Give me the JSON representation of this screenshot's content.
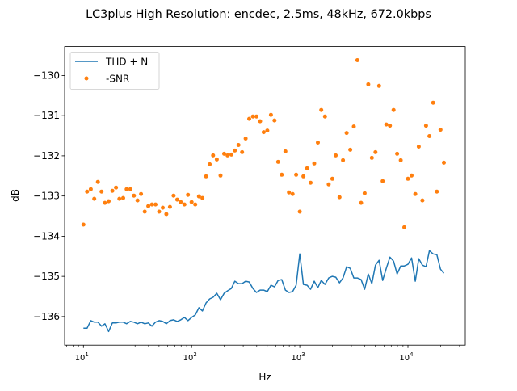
{
  "chart_data": {
    "type": "line+scatter",
    "title": "LC3plus High Resolution: encdec, 2.5ms, 48kHz, 672.0kbps",
    "xlabel": "Hz",
    "ylabel": "dB",
    "xscale": "log",
    "xlim": [
      6.7,
      33900
    ],
    "ylim": [
      -136.71,
      -129.28
    ],
    "xticks": [
      {
        "base": "10",
        "exp": "1",
        "value": 10
      },
      {
        "base": "10",
        "exp": "2",
        "value": 100
      },
      {
        "base": "10",
        "exp": "3",
        "value": 1000
      },
      {
        "base": "10",
        "exp": "4",
        "value": 10000
      }
    ],
    "yticks": [
      {
        "label": "−130",
        "value": -130
      },
      {
        "label": "−131",
        "value": -131
      },
      {
        "label": "−132",
        "value": -132
      },
      {
        "label": "−133",
        "value": -133
      },
      {
        "label": "−134",
        "value": -134
      },
      {
        "label": "−135",
        "value": -135
      },
      {
        "label": "−136",
        "value": -136
      }
    ],
    "grid": false,
    "legend_position": "top-left",
    "x": [
      10,
      10.8,
      11.7,
      12.6,
      13.6,
      14.7,
      15.8,
      17.1,
      18.5,
      20,
      21.5,
      23.3,
      25.1,
      27.1,
      29.3,
      31.6,
      34.1,
      36.9,
      39.8,
      43,
      46.4,
      50.1,
      54.1,
      58.4,
      63.1,
      68.1,
      73.6,
      79.4,
      85.8,
      92.6,
      100,
      108,
      117,
      126,
      136,
      147,
      158,
      171,
      185,
      200,
      215,
      233,
      251,
      271,
      293,
      316,
      341,
      369,
      398,
      430,
      464,
      501,
      541,
      584,
      631,
      681,
      736,
      794,
      858,
      926,
      1000,
      1080,
      1170,
      1260,
      1360,
      1470,
      1580,
      1710,
      1850,
      2000,
      2150,
      2330,
      2510,
      2710,
      2930,
      3160,
      3410,
      3690,
      3980,
      4300,
      4640,
      5010,
      5410,
      5840,
      6310,
      6810,
      7360,
      7940,
      8580,
      9260,
      10000,
      10800,
      11700,
      12600,
      13600,
      14700,
      15800,
      17100,
      18500,
      20000,
      21500
    ],
    "series": [
      {
        "name": "THD + N",
        "kind": "line",
        "color": "#1f77b4",
        "values": [
          -136.29,
          -136.29,
          -136.1,
          -136.14,
          -136.14,
          -136.24,
          -136.18,
          -136.37,
          -136.16,
          -136.16,
          -136.14,
          -136.14,
          -136.18,
          -136.12,
          -136.14,
          -136.18,
          -136.14,
          -136.18,
          -136.16,
          -136.24,
          -136.14,
          -136.1,
          -136.12,
          -136.18,
          -136.1,
          -136.08,
          -136.12,
          -136.08,
          -136.02,
          -136.1,
          -136.02,
          -135.96,
          -135.78,
          -135.86,
          -135.66,
          -135.56,
          -135.52,
          -135.42,
          -135.58,
          -135.42,
          -135.36,
          -135.3,
          -135.12,
          -135.18,
          -135.18,
          -135.12,
          -135.14,
          -135.3,
          -135.4,
          -135.34,
          -135.34,
          -135.38,
          -135.22,
          -135.26,
          -135.1,
          -135.08,
          -135.34,
          -135.4,
          -135.38,
          -135.22,
          -134.44,
          -135.2,
          -135.22,
          -135.32,
          -135.12,
          -135.28,
          -135.1,
          -135.2,
          -135.04,
          -135.0,
          -135.02,
          -135.16,
          -135.04,
          -134.76,
          -134.8,
          -135.04,
          -135.04,
          -135.08,
          -135.32,
          -134.94,
          -135.18,
          -134.72,
          -134.6,
          -135.1,
          -134.8,
          -134.52,
          -134.62,
          -134.94,
          -134.74,
          -134.74,
          -134.7,
          -134.54,
          -135.12,
          -134.56,
          -134.72,
          -134.76,
          -134.36,
          -134.44,
          -134.46,
          -134.82,
          -134.92
        ]
      },
      {
        "name": "-SNR",
        "kind": "scatter",
        "color": "#ff7f0e",
        "values": [
          -133.71,
          -132.89,
          -132.83,
          -133.07,
          -132.65,
          -132.89,
          -133.17,
          -133.13,
          -132.87,
          -132.79,
          -133.07,
          -133.05,
          -132.83,
          -132.83,
          -132.99,
          -133.11,
          -132.95,
          -133.39,
          -133.25,
          -133.21,
          -133.21,
          -133.39,
          -133.29,
          -133.45,
          -133.27,
          -132.99,
          -133.09,
          -133.15,
          -133.21,
          -132.97,
          -133.15,
          -133.21,
          -133.01,
          -133.05,
          -132.51,
          -132.21,
          -131.99,
          -132.09,
          -132.49,
          -131.95,
          -131.99,
          -131.97,
          -131.87,
          -131.73,
          -131.91,
          -131.57,
          -131.08,
          -131.02,
          -131.02,
          -131.14,
          -131.41,
          -131.37,
          -130.98,
          -131.12,
          -132.15,
          -132.47,
          -131.89,
          -132.91,
          -132.95,
          -132.47,
          -133.39,
          -132.51,
          -132.31,
          -132.67,
          -132.19,
          -131.67,
          -130.86,
          -131.02,
          -132.71,
          -132.57,
          -131.99,
          -133.03,
          -132.11,
          -131.43,
          -131.85,
          -131.27,
          -129.62,
          -133.17,
          -132.93,
          -130.22,
          -132.05,
          -131.91,
          -130.26,
          -132.63,
          -131.22,
          -131.25,
          -130.86,
          -131.95,
          -132.11,
          -133.78,
          -132.57,
          -132.49,
          -132.95,
          -131.77,
          -133.11,
          -131.25,
          -131.51,
          -130.68,
          -132.89,
          -131.35,
          -132.17
        ]
      }
    ]
  }
}
